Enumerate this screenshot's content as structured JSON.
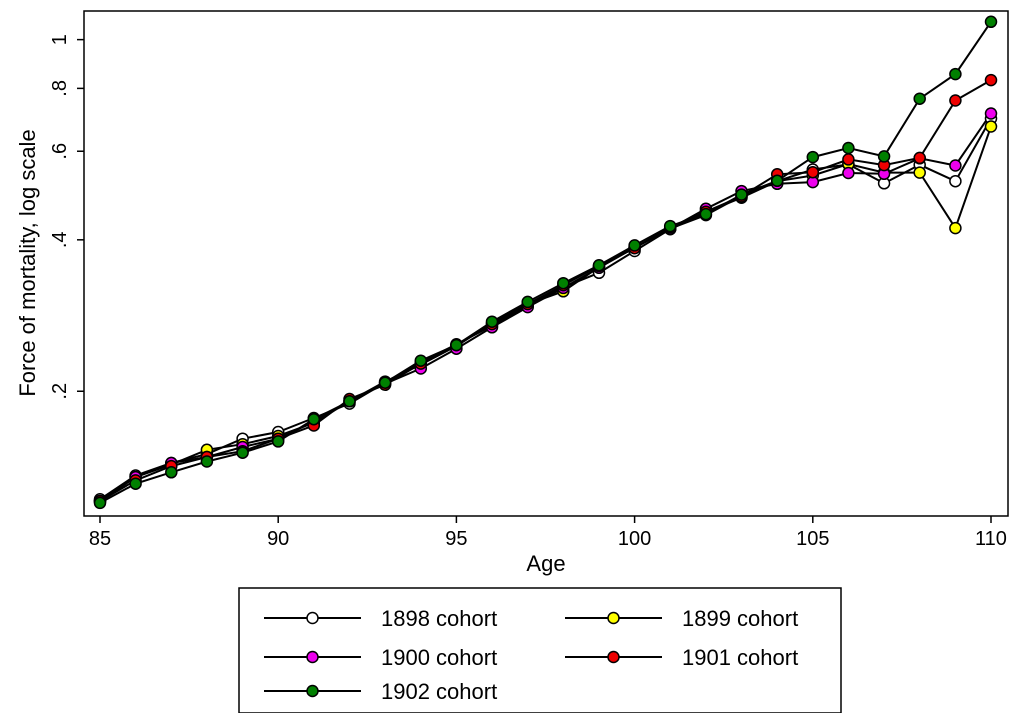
{
  "chart_data": {
    "type": "line",
    "xlabel": "Age",
    "ylabel": "Force of mortality, log scale",
    "y_scale": "log",
    "xlim": [
      85,
      110
    ],
    "ylim": [
      0.113,
      1.14
    ],
    "x_ticks": [
      85,
      90,
      95,
      100,
      105,
      110
    ],
    "x_tick_labels": [
      "85",
      "90",
      "95",
      "100",
      "105",
      "110"
    ],
    "y_ticks": [
      0.2,
      0.4,
      0.6,
      0.8,
      1.0
    ],
    "y_tick_labels": [
      ".2",
      ".4",
      ".6",
      ".8",
      "1"
    ],
    "grid": false,
    "legend": "bottom",
    "x": [
      85,
      86,
      87,
      88,
      89,
      90,
      91,
      92,
      93,
      94,
      95,
      96,
      97,
      98,
      99,
      100,
      101,
      102,
      103,
      104,
      105,
      106,
      107,
      108,
      109,
      110
    ],
    "series": [
      {
        "name": "1898 cohort",
        "color": "#ffffff",
        "values": [
          0.122,
          0.136,
          0.144,
          0.15,
          0.161,
          0.166,
          0.177,
          0.189,
          0.208,
          0.228,
          0.248,
          0.27,
          0.296,
          0.322,
          0.344,
          0.38,
          0.42,
          0.454,
          0.485,
          0.523,
          0.552,
          0.565,
          0.518,
          0.564,
          0.523,
          0.697
        ]
      },
      {
        "name": "1899 cohort",
        "color": "#ffff00",
        "values": [
          0.121,
          0.135,
          0.143,
          0.153,
          0.157,
          0.163,
          0.173,
          0.191,
          0.209,
          0.226,
          0.246,
          0.273,
          0.298,
          0.316,
          0.353,
          0.386,
          0.421,
          0.448,
          0.489,
          0.523,
          0.537,
          0.566,
          0.544,
          0.544,
          0.422,
          0.672
        ]
      },
      {
        "name": "1900 cohort",
        "color": "#ee00ee",
        "values": [
          0.121,
          0.135,
          0.144,
          0.148,
          0.155,
          0.161,
          0.174,
          0.191,
          0.207,
          0.222,
          0.243,
          0.268,
          0.294,
          0.321,
          0.352,
          0.386,
          0.421,
          0.461,
          0.5,
          0.517,
          0.521,
          0.543,
          0.541,
          0.581,
          0.562,
          0.713
        ]
      },
      {
        "name": "1901 cohort",
        "color": "#ee0000",
        "values": [
          0.121,
          0.133,
          0.142,
          0.148,
          0.152,
          0.161,
          0.171,
          0.193,
          0.206,
          0.227,
          0.247,
          0.272,
          0.298,
          0.325,
          0.355,
          0.385,
          0.424,
          0.455,
          0.488,
          0.54,
          0.545,
          0.578,
          0.563,
          0.582,
          0.757,
          0.831
        ]
      },
      {
        "name": "1902 cohort",
        "color": "#008000",
        "values": [
          0.12,
          0.131,
          0.138,
          0.145,
          0.151,
          0.159,
          0.176,
          0.191,
          0.208,
          0.23,
          0.247,
          0.275,
          0.301,
          0.328,
          0.356,
          0.39,
          0.426,
          0.45,
          0.492,
          0.524,
          0.584,
          0.609,
          0.586,
          0.763,
          0.854,
          1.085
        ]
      }
    ]
  }
}
